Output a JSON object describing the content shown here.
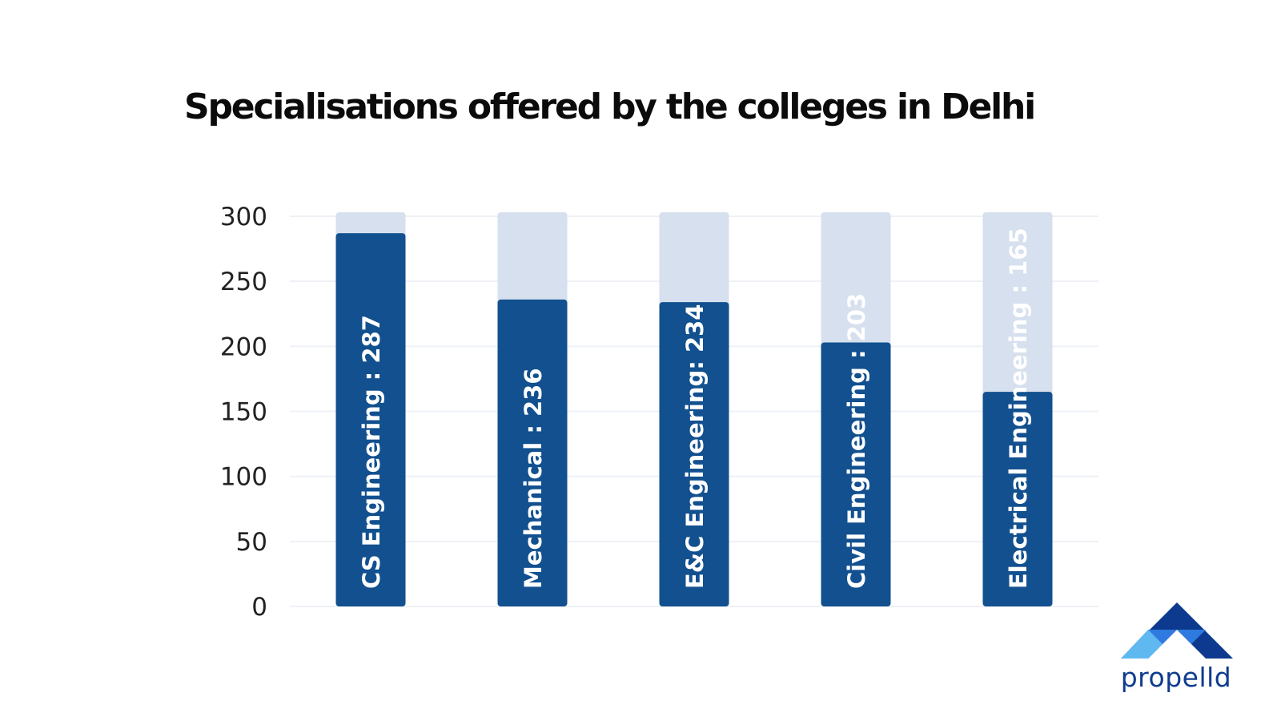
{
  "chart_data": {
    "type": "bar",
    "title": "Specialisations offered by the colleges in Delhi",
    "categories": [
      "CS Engineering",
      "Mechanical",
      "E&C Engineering",
      "Civil Engineering",
      "Electrical Engineering"
    ],
    "values": [
      287,
      236,
      234,
      203,
      165
    ],
    "bar_labels": [
      "CS Engineering : 287",
      "Mechanical : 236",
      "E&C Engineering: 234",
      "Civil Engineering : 203",
      "Electrical Engineering : 165"
    ],
    "ylim": [
      0,
      300
    ],
    "yticks": [
      "0",
      "50",
      "100",
      "150",
      "200",
      "250",
      "300"
    ],
    "xlabel": "",
    "ylabel": "",
    "grid": true,
    "legend": "none"
  },
  "colors": {
    "bar": "#12508f",
    "bar_track": "#d6e0ee",
    "gridline": "#eef1f6",
    "label": "#ffffff",
    "tick_label": "#222222",
    "logo_dark": "#0d3a8e",
    "logo_mid": "#2f7ae0",
    "logo_light": "#5fb8ef"
  },
  "logo": {
    "text": "propelld",
    "icon": "mountain-logo-icon"
  }
}
